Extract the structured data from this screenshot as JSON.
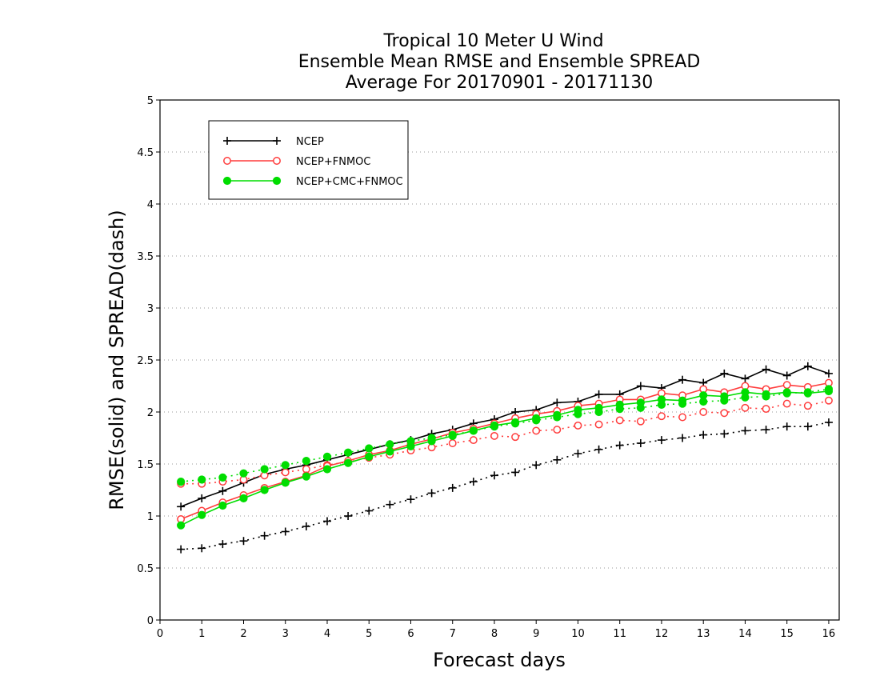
{
  "chart_data": {
    "type": "line",
    "title": [
      "Tropical 10 Meter U Wind",
      "Ensemble Mean RMSE and Ensemble SPREAD",
      "Average For 20170901 - 20171130"
    ],
    "xlabel": "Forecast days",
    "ylabel": "RMSE(solid) and SPREAD(dash)",
    "xlim": [
      0,
      16.25
    ],
    "ylim": [
      0,
      5
    ],
    "xticks": [
      0,
      1,
      2,
      3,
      4,
      5,
      6,
      7,
      8,
      9,
      10,
      11,
      12,
      13,
      14,
      15,
      16
    ],
    "yticks": [
      0,
      0.5,
      1,
      1.5,
      2,
      2.5,
      3,
      3.5,
      4,
      4.5,
      5
    ],
    "ytick_labels": [
      "0",
      "0.5",
      "1",
      "1.5",
      "2",
      "2.5",
      "3",
      "3.5",
      "4",
      "4.5",
      "5"
    ],
    "grid": "horizontal dotted",
    "legend_position": "top-left",
    "x": [
      0.5,
      1,
      1.5,
      2,
      2.5,
      3,
      3.5,
      4,
      4.5,
      5,
      5.5,
      6,
      6.5,
      7,
      7.5,
      8,
      8.5,
      9,
      9.5,
      10,
      10.5,
      11,
      11.5,
      12,
      12.5,
      13,
      13.5,
      14,
      14.5,
      15,
      15.5,
      16
    ],
    "series": [
      {
        "name": "NCEP",
        "color": "#000000",
        "marker": "plus",
        "rmse": [
          1.09,
          1.17,
          1.24,
          1.32,
          1.4,
          1.45,
          1.49,
          1.54,
          1.59,
          1.64,
          1.69,
          1.73,
          1.79,
          1.83,
          1.89,
          1.93,
          2.0,
          2.02,
          2.09,
          2.1,
          2.17,
          2.17,
          2.25,
          2.23,
          2.31,
          2.28,
          2.37,
          2.32,
          2.41,
          2.35,
          2.44,
          2.37
        ],
        "spread": [
          0.68,
          0.69,
          0.73,
          0.76,
          0.81,
          0.85,
          0.9,
          0.95,
          1.0,
          1.05,
          1.11,
          1.16,
          1.22,
          1.27,
          1.33,
          1.39,
          1.42,
          1.49,
          1.54,
          1.6,
          1.64,
          1.68,
          1.7,
          1.73,
          1.75,
          1.78,
          1.79,
          1.82,
          1.83,
          1.86,
          1.86,
          1.9
        ]
      },
      {
        "name": "NCEP+FNMOC",
        "color": "#ff3c3c",
        "marker": "open-circle",
        "rmse": [
          0.97,
          1.05,
          1.13,
          1.2,
          1.27,
          1.33,
          1.39,
          1.48,
          1.53,
          1.59,
          1.63,
          1.69,
          1.74,
          1.8,
          1.84,
          1.89,
          1.94,
          1.98,
          2.01,
          2.06,
          2.08,
          2.12,
          2.12,
          2.18,
          2.16,
          2.22,
          2.19,
          2.25,
          2.22,
          2.26,
          2.24,
          2.28
        ],
        "spread": [
          1.31,
          1.31,
          1.33,
          1.35,
          1.39,
          1.42,
          1.45,
          1.49,
          1.52,
          1.56,
          1.59,
          1.63,
          1.66,
          1.7,
          1.73,
          1.77,
          1.76,
          1.82,
          1.83,
          1.87,
          1.88,
          1.92,
          1.91,
          1.96,
          1.95,
          2.0,
          1.99,
          2.04,
          2.03,
          2.08,
          2.06,
          2.11
        ]
      },
      {
        "name": "NCEP+CMC+FNMOC",
        "color": "#00dd00",
        "marker": "filled-circle",
        "rmse": [
          0.91,
          1.01,
          1.1,
          1.17,
          1.25,
          1.32,
          1.38,
          1.45,
          1.51,
          1.57,
          1.62,
          1.67,
          1.72,
          1.77,
          1.82,
          1.87,
          1.9,
          1.94,
          1.97,
          2.02,
          2.04,
          2.07,
          2.09,
          2.12,
          2.11,
          2.16,
          2.15,
          2.19,
          2.17,
          2.19,
          2.18,
          2.2
        ],
        "spread": [
          1.33,
          1.35,
          1.37,
          1.41,
          1.45,
          1.49,
          1.53,
          1.57,
          1.61,
          1.65,
          1.69,
          1.72,
          1.75,
          1.78,
          1.82,
          1.86,
          1.89,
          1.92,
          1.95,
          1.98,
          2.0,
          2.03,
          2.04,
          2.07,
          2.08,
          2.1,
          2.11,
          2.14,
          2.15,
          2.18,
          2.19,
          2.22
        ]
      }
    ]
  }
}
